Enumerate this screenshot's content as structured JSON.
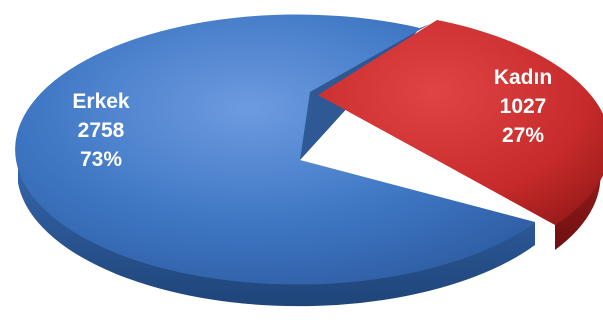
{
  "chart_data": {
    "type": "pie",
    "slices": [
      {
        "name": "Erkek",
        "value": 2758,
        "percent_label": "73%",
        "value_label": "2758",
        "color": "#3f77c4",
        "side_color": "#2a5894"
      },
      {
        "name": "Kadın",
        "value": 1027,
        "percent_label": "27%",
        "value_label": "1027",
        "color": "#c62a2a",
        "side_color": "#8a1717"
      }
    ],
    "exploded": "Kadın",
    "style": "3d"
  }
}
